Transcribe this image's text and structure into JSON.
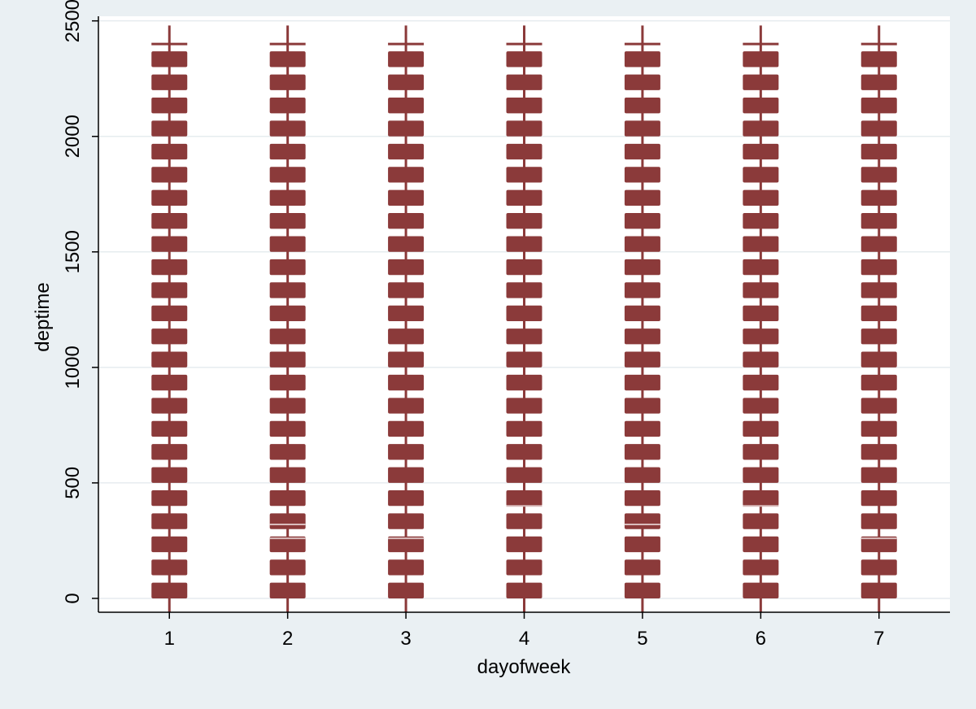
{
  "chart_data": {
    "type": "scatter",
    "title": "",
    "xlabel": "dayofweek",
    "ylabel": "deptime",
    "x_ticks": [
      "1",
      "2",
      "3",
      "4",
      "5",
      "6",
      "7"
    ],
    "y_ticks": [
      "0",
      "500",
      "1000",
      "1500",
      "2000",
      "2500"
    ],
    "xlim": [
      0.4,
      7.6
    ],
    "ylim": [
      -60,
      2520
    ],
    "grid": true,
    "marker": "capital-hour-bars",
    "colors": {
      "marker": "#8b3a3a",
      "background": "#eaf0f3",
      "plot_background": "#ffffff",
      "grid": "#e6ecef",
      "axis": "#000000"
    },
    "series": [
      {
        "x": 1,
        "y_range": [
          0,
          2400
        ],
        "step": 100,
        "extra_y": [
          2400,
          2480,
          -60
        ]
      },
      {
        "x": 2,
        "y_range": [
          0,
          2400
        ],
        "step": 100,
        "extra_y": [
          2400,
          2480,
          -60,
          320,
          260
        ]
      },
      {
        "x": 3,
        "y_range": [
          0,
          2400
        ],
        "step": 100,
        "extra_y": [
          2400,
          2480,
          -60,
          260
        ]
      },
      {
        "x": 4,
        "y_range": [
          0,
          2400
        ],
        "step": 100,
        "extra_y": [
          2400,
          2480,
          -60,
          400
        ]
      },
      {
        "x": 5,
        "y_range": [
          0,
          2400
        ],
        "step": 100,
        "extra_y": [
          2400,
          2480,
          -60,
          320
        ]
      },
      {
        "x": 6,
        "y_range": [
          0,
          2400
        ],
        "step": 100,
        "extra_y": [
          2400,
          2480,
          -60,
          400
        ]
      },
      {
        "x": 7,
        "y_range": [
          0,
          2400
        ],
        "step": 100,
        "extra_y": [
          2400,
          2480,
          -60,
          260
        ]
      }
    ]
  }
}
